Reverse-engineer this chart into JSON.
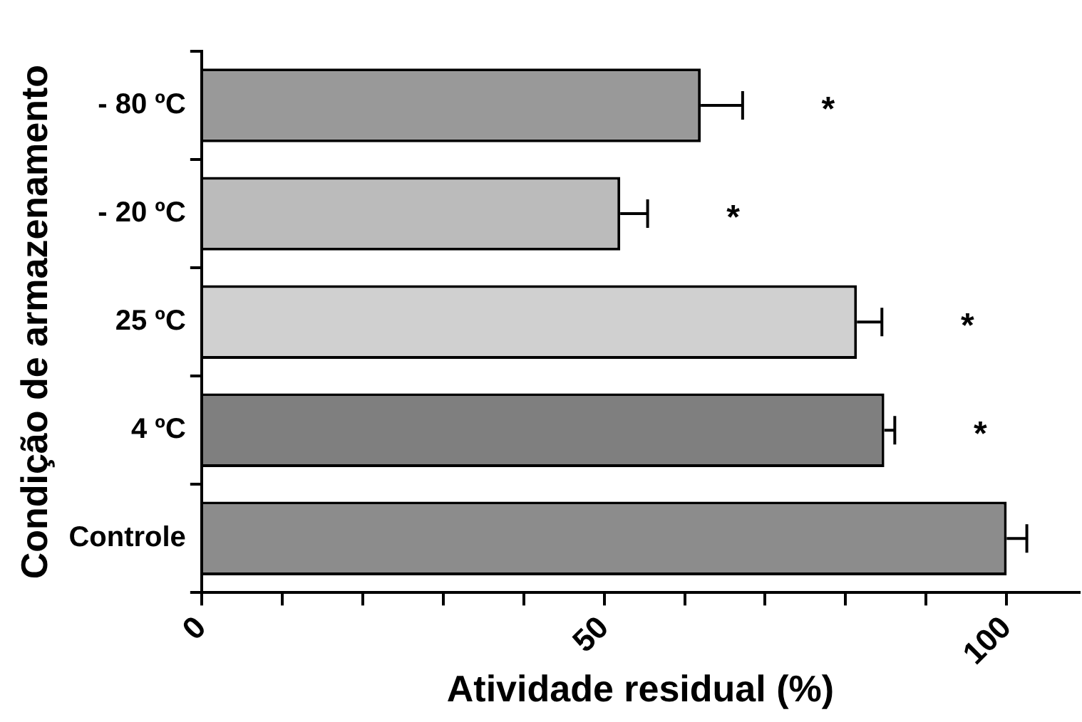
{
  "chart_data": {
    "type": "bar",
    "orientation": "horizontal",
    "xlabel": "Atividade residual (%)",
    "ylabel": "Condição de armazenamento",
    "categories": [
      "- 80 ºC",
      "- 20 ºC",
      "25 ºC",
      "4 ºC",
      "Controle"
    ],
    "values": [
      62,
      52,
      81.4,
      84.8,
      100
    ],
    "errors": [
      [
        62,
        67.2
      ],
      [
        52,
        55.4
      ],
      [
        81.4,
        84.5
      ],
      [
        84.8,
        86.1
      ],
      [
        100,
        102.5
      ]
    ],
    "colors": [
      "#999999",
      "#bbbbbb",
      "#d0d0d0",
      "#7f7f7f",
      "#8c8c8c"
    ],
    "xlim": [
      0,
      109
    ],
    "xticks": [
      0,
      {
        "value": 10,
        "label": null
      },
      {
        "value": 20,
        "label": null
      },
      {
        "value": 30,
        "label": null
      },
      {
        "value": 40,
        "label": null
      },
      50,
      {
        "value": 60,
        "label": null
      },
      {
        "value": 70,
        "label": null
      },
      {
        "value": 80,
        "label": null
      },
      {
        "value": 90,
        "label": null
      },
      100
    ],
    "annotations": [
      "*",
      "*",
      "*",
      "*"
    ],
    "grid": false,
    "legend": false
  }
}
